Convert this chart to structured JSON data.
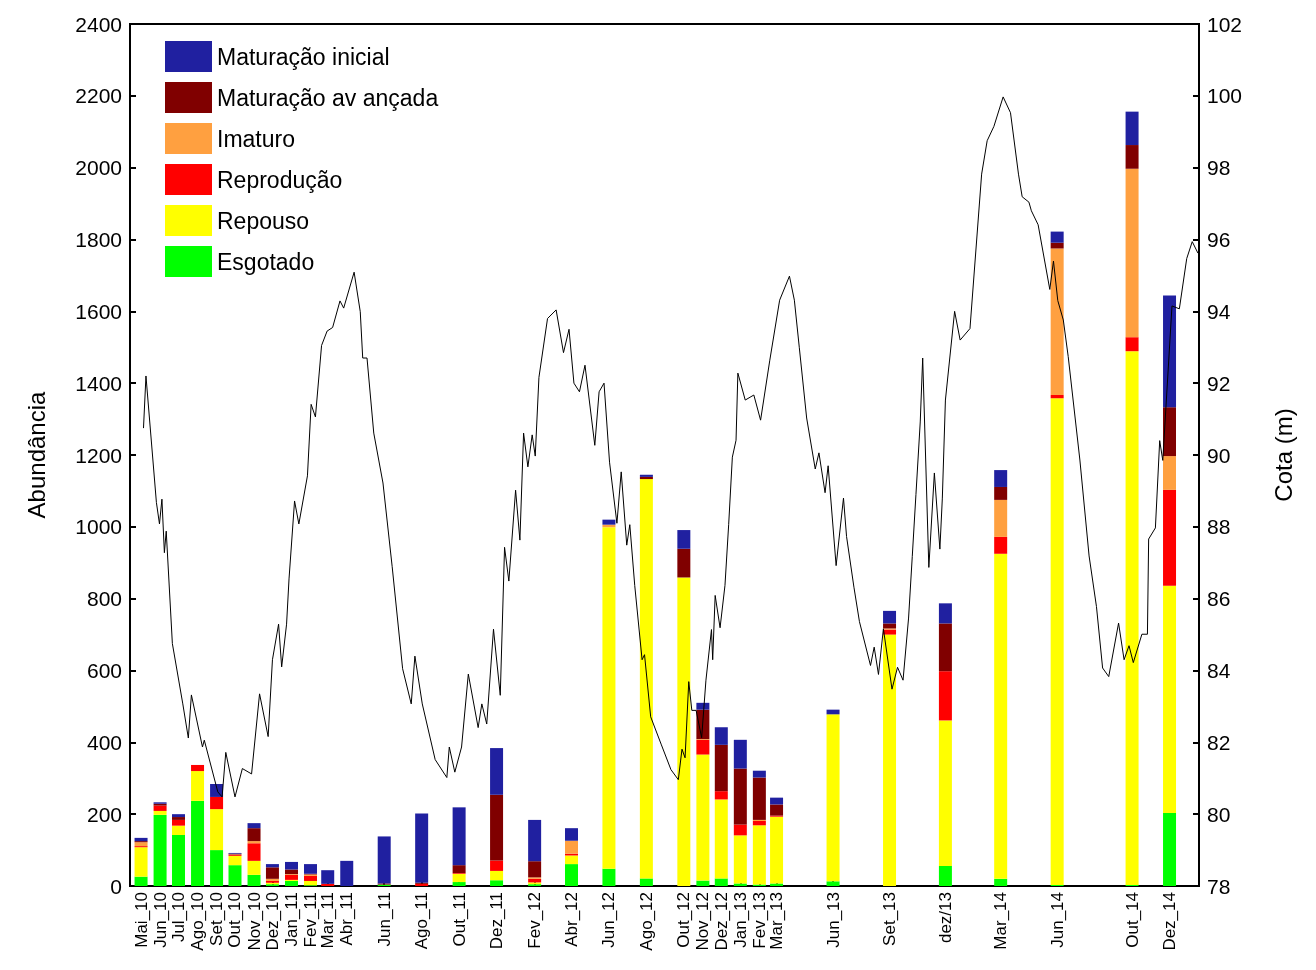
{
  "chart_data": {
    "type": "bar",
    "stacked": true,
    "ylabel": "Abundância",
    "y2label": "Cota (m)",
    "x": [
      "2010-05-15",
      "2010-06-15",
      "2010-07-15",
      "2010-08-15",
      "2010-09-15",
      "2010-10-15",
      "2010-11-15",
      "2010-12-15",
      "2011-01-15",
      "2011-02-15",
      "2011-03-15",
      "2011-04-15",
      "2011-06-15",
      "2011-08-15",
      "2011-10-15",
      "2011-12-15",
      "2012-02-15",
      "2012-04-15",
      "2012-06-15",
      "2012-08-15",
      "2012-10-15",
      "2012-11-15",
      "2012-12-15",
      "2013-01-15",
      "2013-02-15",
      "2013-03-15",
      "2013-06-15",
      "2013-09-15",
      "2013-12-15",
      "2014-03-15",
      "2014-06-15",
      "2014-10-15",
      "2014-12-15"
    ],
    "xlim": [
      "2010-04-27",
      "2015-02-01"
    ],
    "xticks": [
      {
        "value": "2010-05-15",
        "label": "Mai_10"
      },
      {
        "value": "2010-06-15",
        "label": "Jun_10"
      },
      {
        "value": "2010-07-15",
        "label": "Jul_10"
      },
      {
        "value": "2010-08-15",
        "label": "Ago_10"
      },
      {
        "value": "2010-09-15",
        "label": "Set_10"
      },
      {
        "value": "2010-10-15",
        "label": "Out_10"
      },
      {
        "value": "2010-11-15",
        "label": "Nov_10"
      },
      {
        "value": "2010-12-15",
        "label": "Dez_10"
      },
      {
        "value": "2011-01-15",
        "label": "Jan_11"
      },
      {
        "value": "2011-02-15",
        "label": "Fev_11"
      },
      {
        "value": "2011-03-15",
        "label": "Mar_11"
      },
      {
        "value": "2011-04-15",
        "label": "Abr_11"
      },
      {
        "value": "2011-06-15",
        "label": "Jun_11"
      },
      {
        "value": "2011-08-15",
        "label": "Ago_11"
      },
      {
        "value": "2011-10-15",
        "label": "Out_11"
      },
      {
        "value": "2011-12-15",
        "label": "Dez_11"
      },
      {
        "value": "2012-02-15",
        "label": "Fev_12"
      },
      {
        "value": "2012-04-15",
        "label": "Abr_12"
      },
      {
        "value": "2012-06-15",
        "label": "Jun_12"
      },
      {
        "value": "2012-08-15",
        "label": "Ago_12"
      },
      {
        "value": "2012-10-15",
        "label": "Out_12"
      },
      {
        "value": "2012-11-15",
        "label": "Nov_12"
      },
      {
        "value": "2012-12-15",
        "label": "Dez_12"
      },
      {
        "value": "2013-01-15",
        "label": "Jan_13"
      },
      {
        "value": "2013-02-15",
        "label": "Fev_13"
      },
      {
        "value": "2013-03-15",
        "label": "Mar_13"
      },
      {
        "value": "2013-06-15",
        "label": "Jun_13"
      },
      {
        "value": "2013-09-15",
        "label": "Set_13"
      },
      {
        "value": "2013-12-15",
        "label": "dez/13"
      },
      {
        "value": "2014-03-15",
        "label": "Mar_14"
      },
      {
        "value": "2014-06-15",
        "label": "Jun_14"
      },
      {
        "value": "2014-10-15",
        "label": "Out_14"
      },
      {
        "value": "2014-12-15",
        "label": "Dez_14"
      }
    ],
    "ylim": [
      0,
      2400
    ],
    "yticks": [
      0,
      200,
      400,
      600,
      800,
      1000,
      1200,
      1400,
      1600,
      1800,
      2000,
      2200,
      2400
    ],
    "y2lim": [
      78,
      102
    ],
    "y2ticks": [
      78,
      80,
      82,
      84,
      86,
      88,
      90,
      92,
      94,
      96,
      98,
      100,
      102
    ],
    "legend": "top left",
    "grid": false,
    "series": [
      {
        "name": "Esgotado",
        "color": "#00ff00",
        "values": [
          26,
          198,
          142,
          237,
          100,
          58,
          31,
          5,
          14,
          2,
          0,
          0,
          4,
          0,
          11,
          16,
          5,
          61,
          48,
          21,
          0,
          15,
          21,
          7,
          4,
          7,
          13,
          0,
          56,
          20,
          3,
          3,
          203
        ]
      },
      {
        "name": "Repouso",
        "color": "#ffff00",
        "values": [
          82,
          11,
          26,
          83,
          114,
          26,
          39,
          4,
          3,
          12,
          0,
          0,
          0,
          0,
          23,
          26,
          5,
          24,
          951,
          1112,
          859,
          351,
          220,
          134,
          165,
          186,
          465,
          700,
          405,
          905,
          1355,
          1486,
          633
        ]
      },
      {
        "name": "Reprodução",
        "color": "#ff0000",
        "values": [
          3,
          15,
          16,
          17,
          34,
          3,
          49,
          5,
          14,
          14,
          6,
          0,
          0,
          6,
          2,
          29,
          10,
          5,
          0,
          0,
          0,
          41,
          23,
          30,
          12,
          3,
          0,
          14,
          137,
          47,
          9,
          39,
          267
        ]
      },
      {
        "name": "Imaturo",
        "color": "#ffa040",
        "values": [
          11,
          0,
          0,
          0,
          0,
          1,
          6,
          6,
          2,
          4,
          0,
          0,
          0,
          0,
          0,
          0,
          4,
          36,
          7,
          0,
          0,
          2,
          0,
          0,
          3,
          0,
          0,
          3,
          null,
          103,
          408,
          469,
          94
        ]
      },
      {
        "name": "Maturação av ançada",
        "color": "#800000",
        "values": [
          3,
          5,
          8,
          0,
          0,
          2,
          36,
          32,
          13,
          2,
          0,
          0,
          3,
          3,
          22,
          183,
          45,
          0,
          0,
          6,
          80,
          82,
          129,
          156,
          118,
          31,
          0,
          14,
          133,
          36,
          16,
          66,
          136
        ]
      },
      {
        "name": "Maturação inicial",
        "color": "#2020a0",
        "values": [
          9,
          4,
          8,
          0,
          36,
          2,
          14,
          9,
          21,
          27,
          38,
          70,
          131,
          193,
          161,
          130,
          115,
          35,
          14,
          6,
          52,
          19,
          49,
          80,
          19,
          19,
          13,
          35,
          56,
          47,
          31,
          93,
          311
        ]
      },
      {
        "type": "line",
        "axis": "y2",
        "color": "#000000",
        "line_style": "solid",
        "x": [
          "2010-05-19",
          "2010-05-23",
          "2010-06-09",
          "2010-06-14",
          "2010-06-18",
          "2010-06-22",
          "2010-06-25",
          "2010-07-05",
          "2010-07-22",
          "2010-07-31",
          "2010-08-05",
          "2010-08-23",
          "2010-08-26",
          "2010-09-17",
          "2010-09-24",
          "2010-09-30",
          "2010-10-15",
          "2010-10-27",
          "2010-11-11",
          "2010-11-24",
          "2010-12-08",
          "2010-12-15",
          "2010-12-25",
          "2010-12-30",
          "2011-01-07",
          "2011-01-11",
          "2011-01-20",
          "2011-01-27",
          "2011-02-10",
          "2011-02-16",
          "2011-02-23",
          "2011-03-05",
          "2011-03-14",
          "2011-03-23",
          "2011-04-04",
          "2011-04-10",
          "2011-04-27",
          "2011-05-07",
          "2011-05-11",
          "2011-05-18",
          "2011-05-29",
          "2011-06-13",
          "2011-06-28",
          "2011-07-15",
          "2011-07-29",
          "2011-08-04",
          "2011-08-16",
          "2011-09-06",
          "2011-09-25",
          "2011-09-29",
          "2011-10-08",
          "2011-10-19",
          "2011-10-30",
          "2011-11-15",
          "2011-11-21",
          "2011-11-29",
          "2011-12-10",
          "2011-12-21",
          "2011-12-28",
          "2012-01-04",
          "2012-01-15",
          "2012-01-22",
          "2012-01-28",
          "2012-02-04",
          "2012-02-11",
          "2012-02-16",
          "2012-02-22",
          "2012-03-07",
          "2012-03-21",
          "2012-04-02",
          "2012-04-11",
          "2012-04-19",
          "2012-04-28",
          "2012-05-07",
          "2012-05-23",
          "2012-05-30",
          "2012-06-07",
          "2012-06-16",
          "2012-06-28",
          "2012-07-05",
          "2012-07-14",
          "2012-07-19",
          "2012-07-27",
          "2012-08-08",
          "2012-08-12",
          "2012-08-22",
          "2012-09-08",
          "2012-09-24",
          "2012-10-06",
          "2012-10-12",
          "2012-10-17",
          "2012-10-23",
          "2012-10-28",
          "2012-11-04",
          "2012-11-13",
          "2012-11-20",
          "2012-11-29",
          "2012-12-01",
          "2012-12-05",
          "2012-12-13",
          "2012-12-21",
          "2012-12-27",
          "2013-01-02",
          "2013-01-08",
          "2013-01-11",
          "2013-01-23",
          "2013-02-06",
          "2013-02-17",
          "2013-03-04",
          "2013-03-20",
          "2013-04-05",
          "2013-04-13",
          "2013-04-21",
          "2013-05-03",
          "2013-05-17",
          "2013-05-23",
          "2013-06-02",
          "2013-06-07",
          "2013-06-20",
          "2013-07-02",
          "2013-07-07",
          "2013-07-19",
          "2013-07-28",
          "2013-08-15",
          "2013-08-21",
          "2013-08-28",
          "2013-09-05",
          "2013-09-19",
          "2013-09-28",
          "2013-10-07",
          "2013-10-16",
          "2013-10-22",
          "2013-10-28",
          "2013-11-04",
          "2013-11-08",
          "2013-11-18",
          "2013-11-27",
          "2013-12-06",
          "2013-12-10",
          "2013-12-15",
          "2013-12-30",
          "2014-01-08",
          "2014-01-24",
          "2014-02-12",
          "2014-02-21",
          "2014-03-04",
          "2014-03-19",
          "2014-03-31",
          "2014-04-13",
          "2014-04-19",
          "2014-04-30",
          "2014-05-04",
          "2014-05-15",
          "2014-06-03",
          "2014-06-09",
          "2014-06-16",
          "2014-06-25",
          "2014-07-03",
          "2014-07-22",
          "2014-08-06",
          "2014-08-18",
          "2014-08-28",
          "2014-09-07",
          "2014-09-23",
          "2014-10-02",
          "2014-10-10",
          "2014-10-17",
          "2014-10-31",
          "2014-11-09",
          "2014-11-11",
          "2014-11-22",
          "2014-11-29",
          "2014-12-04",
          "2014-12-19",
          "2014-12-31",
          "2015-01-12",
          "2015-01-21",
          "2015-01-30"
        ],
        "values": [
          90.76,
          92.2,
          88.68,
          88.08,
          88.77,
          87.28,
          87.88,
          84.75,
          83.07,
          82.12,
          83.32,
          81.87,
          82.06,
          80.62,
          80.48,
          81.72,
          80.48,
          81.27,
          81.12,
          83.35,
          82.16,
          84.3,
          85.29,
          84.1,
          85.29,
          86.55,
          88.72,
          88.08,
          89.42,
          91.41,
          91.06,
          93.05,
          93.45,
          93.55,
          94.29,
          94.09,
          95.09,
          93.99,
          92.7,
          92.7,
          90.61,
          89.22,
          86.89,
          84.05,
          83.07,
          84.4,
          83.07,
          81.52,
          81.02,
          81.87,
          81.17,
          81.87,
          83.9,
          82.41,
          83.07,
          82.51,
          85.15,
          83.31,
          87.43,
          86.49,
          89.02,
          87.63,
          90.61,
          89.67,
          90.56,
          89.97,
          92.16,
          93.8,
          94.04,
          92.85,
          93.5,
          92.0,
          91.76,
          92.5,
          90.27,
          91.76,
          92.0,
          89.8,
          88.1,
          89.53,
          87.49,
          88.06,
          86.37,
          84.3,
          84.44,
          82.71,
          81.95,
          81.24,
          80.96,
          81.81,
          81.57,
          83.69,
          82.89,
          82.89,
          82.13,
          83.73,
          85.14,
          84.3,
          86.09,
          85.19,
          86.37,
          88.06,
          89.94,
          90.41,
          92.28,
          91.53,
          91.67,
          90.97,
          92.64,
          94.31,
          94.98,
          94.31,
          93.0,
          91.03,
          89.61,
          90.06,
          88.95,
          89.7,
          86.92,
          88.8,
          87.73,
          86.32,
          85.36,
          84.14,
          84.65,
          83.89,
          85.16,
          83.48,
          84.09,
          83.73,
          85.46,
          87.17,
          88.9,
          90.92,
          92.7,
          86.87,
          89.5,
          87.38,
          88.8,
          91.53,
          94.0,
          93.2,
          93.52,
          97.82,
          98.75,
          99.15,
          99.97,
          99.53,
          97.82,
          97.19,
          97.04,
          96.8,
          96.41,
          94.61,
          95.4,
          94.3,
          93.76,
          92.74,
          89.86,
          87.19,
          85.78,
          84.07,
          83.83,
          85.32,
          84.3,
          84.69,
          84.22,
          85.01,
          85.01,
          87.66,
          87.97,
          90.4,
          89.85,
          94.15,
          94.07,
          95.47,
          95.94,
          95.63
        ]
      }
    ]
  }
}
